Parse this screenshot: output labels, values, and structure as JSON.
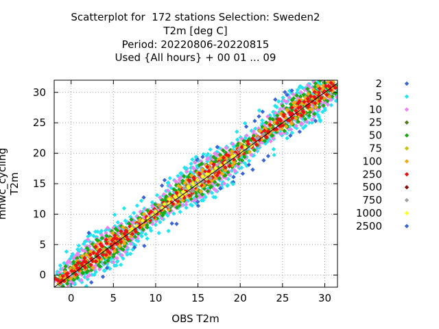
{
  "chart_data": {
    "type": "scatter",
    "title_lines": [
      "Scatterplot for  172 stations Selection: Sweden2",
      "T2m [deg C]",
      "Period: 20220806-20220815",
      "Used {All hours} + 00 01 ... 09"
    ],
    "xlabel": "OBS T2m",
    "ylabel": "mnwc_cycling T2m",
    "xlim": [
      -2,
      31.5
    ],
    "ylim": [
      -2,
      32
    ],
    "x_ticks": [
      "0",
      "5",
      "10",
      "15",
      "20",
      "25",
      "30"
    ],
    "y_ticks": [
      "0",
      "5",
      "10",
      "15",
      "20",
      "25",
      "30"
    ],
    "grid": true,
    "legend_placement": "right",
    "diagonal_line": true,
    "series": [
      {
        "name": "2",
        "color": "#3a63d6"
      },
      {
        "name": "5",
        "color": "#22e5f0"
      },
      {
        "name": "10",
        "color": "#ee82ee"
      },
      {
        "name": "25",
        "color": "#4f7a18"
      },
      {
        "name": "50",
        "color": "#1aaa12"
      },
      {
        "name": "75",
        "color": "#c6c20c"
      },
      {
        "name": "100",
        "color": "#f2aa12"
      },
      {
        "name": "250",
        "color": "#ee1010"
      },
      {
        "name": "500",
        "color": "#8a0a0a"
      },
      {
        "name": "750",
        "color": "#a0a0a0"
      },
      {
        "name": "1000",
        "color": "#ffff22"
      },
      {
        "name": "2500",
        "color": "#3a63d6"
      }
    ]
  }
}
